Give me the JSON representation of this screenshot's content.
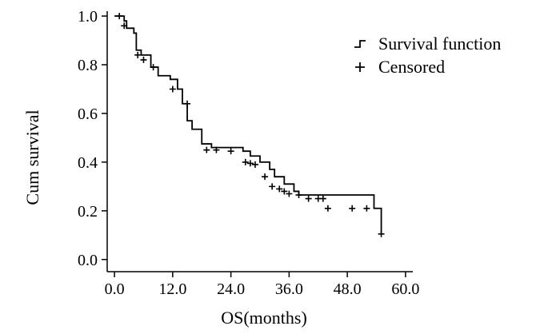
{
  "chart_data": {
    "type": "line",
    "title": "",
    "xlabel": "OS(months)",
    "ylabel": "Cum survival",
    "xlim": [
      -1.5,
      61.5
    ],
    "ylim": [
      -0.05,
      1.02
    ],
    "x_ticks": [
      0,
      12,
      24,
      36,
      48,
      60
    ],
    "x_tick_labels": [
      "0.0",
      "12.0",
      "24.0",
      "36.0",
      "48.0",
      "60.0"
    ],
    "y_ticks": [
      0,
      0.2,
      0.4,
      0.6,
      0.8,
      1.0
    ],
    "y_tick_labels": [
      "0.0",
      "0.2",
      "0.4",
      "0.6",
      "0.8",
      "1.0"
    ],
    "legend": {
      "placement": "top-right",
      "items": [
        {
          "label": "Survival function",
          "symbol": "step"
        },
        {
          "label": "Censored",
          "symbol": "plus"
        }
      ]
    },
    "series": [
      {
        "name": "Survival function",
        "kind": "step",
        "x": [
          0,
          2,
          2.5,
          4,
          4.5,
          5.5,
          7.5,
          9,
          11.5,
          13,
          14,
          15,
          16,
          18,
          20,
          26.5,
          28,
          30,
          32,
          33,
          35,
          37,
          38,
          53.5,
          55
        ],
        "y": [
          1.0,
          0.98,
          0.95,
          0.93,
          0.86,
          0.84,
          0.79,
          0.755,
          0.74,
          0.7,
          0.64,
          0.57,
          0.535,
          0.475,
          0.46,
          0.445,
          0.425,
          0.4,
          0.37,
          0.34,
          0.31,
          0.28,
          0.265,
          0.21,
          0.105
        ]
      },
      {
        "name": "Censored",
        "kind": "markers",
        "x": [
          1,
          2,
          4.8,
          6,
          8,
          12,
          15,
          19,
          21,
          24,
          27,
          28,
          29,
          31,
          32.5,
          34,
          35,
          36,
          38,
          40,
          42,
          43,
          44,
          49,
          52,
          55
        ],
        "y": [
          1.0,
          0.96,
          0.84,
          0.82,
          0.79,
          0.7,
          0.64,
          0.45,
          0.45,
          0.445,
          0.4,
          0.395,
          0.39,
          0.34,
          0.3,
          0.29,
          0.28,
          0.27,
          0.265,
          0.25,
          0.25,
          0.25,
          0.21,
          0.21,
          0.21,
          0.105
        ]
      }
    ]
  }
}
